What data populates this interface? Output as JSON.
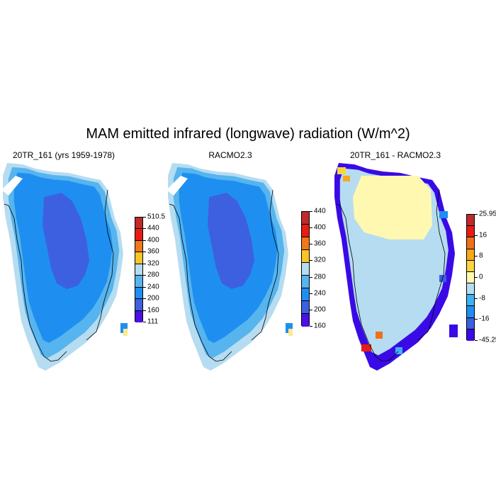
{
  "title": "MAM emitted infrared (longwave) radiation (W/m^2)",
  "colors": {
    "fill_palette": [
      "#4a10e6",
      "#3d60e0",
      "#1e8ff0",
      "#56b4ee",
      "#b5dcf1",
      "#fde98f",
      "#f9c425",
      "#f79012",
      "#ef2a10",
      "#cc0a1a",
      "#c02a2a"
    ],
    "anom_palette": [
      "#3a0ae6",
      "#3a5fe0",
      "#1e8ff0",
      "#3fb1f0",
      "#b5dcf1",
      "#fff8b0",
      "#f9d63c",
      "#f8a818",
      "#f07018",
      "#e81c12",
      "#c02a2a"
    ],
    "outline": "#000000"
  },
  "panels": [
    {
      "title": "20TR_161 (yrs 1959-1978)",
      "colorbar": {
        "labels": [
          "510.5",
          "440",
          "400",
          "360",
          "320",
          "280",
          "240",
          "200",
          "160",
          "111"
        ],
        "colors": [
          "#c02a2a",
          "#e81c12",
          "#f07818",
          "#f9c425",
          "#b5dcf1",
          "#56b4ee",
          "#1e8ff0",
          "#3d60e0",
          "#4a10e6"
        ]
      }
    },
    {
      "title": "RACMO2.3",
      "colorbar": {
        "labels": [
          "440",
          "400",
          "360",
          "320",
          "280",
          "240",
          "200",
          "160"
        ],
        "colors": [
          "#c02a2a",
          "#e81c12",
          "#f07818",
          "#f9c425",
          "#b5dcf1",
          "#56b4ee",
          "#1e8ff0",
          "#3d60e0",
          "#4a10e6"
        ]
      }
    },
    {
      "title": "20TR_161 - RACMO2.3",
      "colorbar": {
        "labels": [
          "25.95",
          "16",
          "8",
          "0",
          "-8",
          "-16",
          "-45.25"
        ],
        "colors": [
          "#c02a2a",
          "#e81c12",
          "#f07018",
          "#f8a818",
          "#f9d63c",
          "#fff8b0",
          "#b5dcf1",
          "#3fb1f0",
          "#1e8ff0",
          "#3a5fe0",
          "#3a0ae6"
        ]
      }
    }
  ]
}
